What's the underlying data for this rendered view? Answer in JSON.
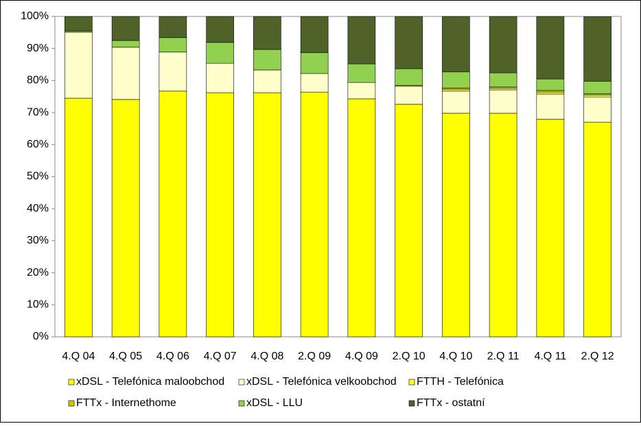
{
  "chart_data": {
    "type": "stacked_bar",
    "categories": [
      "4.Q 04",
      "4.Q 05",
      "4.Q 06",
      "4.Q 07",
      "4.Q 08",
      "2.Q 09",
      "4.Q 09",
      "2.Q 10",
      "4.Q 10",
      "2.Q 11",
      "4.Q 11",
      "2.Q 12"
    ],
    "series": [
      {
        "name": "xDSL - Telefónica maloobchod",
        "color": "#ffff00",
        "values": [
          74.5,
          74.1,
          76.7,
          76.2,
          76.2,
          76.4,
          74.3,
          72.6,
          69.8,
          69.8,
          67.9,
          67.0
        ]
      },
      {
        "name": "xDSL - Telefónica velkoobchod",
        "color": "#ffffcc",
        "values": [
          20.6,
          16.3,
          12.2,
          9.2,
          7.1,
          5.8,
          5.1,
          5.6,
          6.9,
          7.3,
          7.9,
          7.9
        ]
      },
      {
        "name": "FTTH - Telefónica",
        "color": "#ffff33",
        "values": [
          0,
          0,
          0,
          0,
          0,
          0,
          0,
          0.3,
          0.6,
          0.5,
          0.6,
          0.6
        ]
      },
      {
        "name": "FTTx - Internethome",
        "color": "#cccc00",
        "values": [
          0,
          0,
          0,
          0,
          0,
          0,
          0,
          0,
          0.4,
          0.4,
          0.5,
          0.4
        ]
      },
      {
        "name": "xDSL - LLU",
        "color": "#92d050",
        "values": [
          0.4,
          2.1,
          4.5,
          6.5,
          6.4,
          6.5,
          5.8,
          5.2,
          5.0,
          4.4,
          3.6,
          3.9
        ]
      },
      {
        "name": "FTTx - ostatní",
        "color": "#4f6228",
        "values": [
          4.5,
          7.5,
          6.6,
          8.1,
          10.3,
          11.3,
          14.8,
          16.3,
          17.3,
          17.6,
          19.5,
          20.1
        ]
      }
    ],
    "ylim": [
      0,
      100
    ],
    "yticks": [
      {
        "value": 0,
        "label": "0%"
      },
      {
        "value": 10,
        "label": "10%"
      },
      {
        "value": 20,
        "label": "20%"
      },
      {
        "value": 30,
        "label": "30%"
      },
      {
        "value": 40,
        "label": "40%"
      },
      {
        "value": 50,
        "label": "50%"
      },
      {
        "value": 60,
        "label": "60%"
      },
      {
        "value": 70,
        "label": "70%"
      },
      {
        "value": 80,
        "label": "80%"
      },
      {
        "value": 90,
        "label": "90%"
      },
      {
        "value": 100,
        "label": "100%"
      }
    ],
    "legend": "bottom"
  }
}
